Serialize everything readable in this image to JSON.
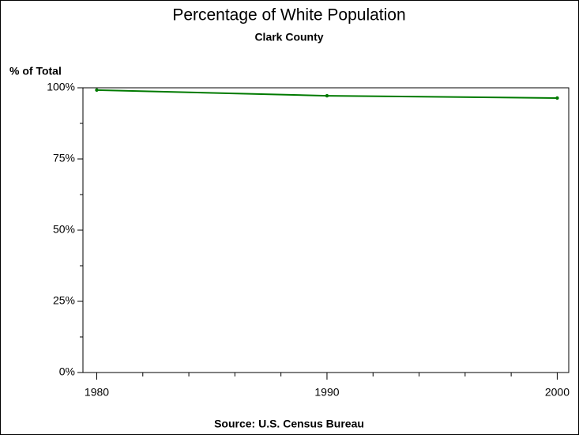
{
  "chart_data": {
    "type": "line",
    "title": "Percentage of White Population",
    "subtitle": "Clark County",
    "y_label": "% of Total",
    "source": "Source: U.S. Census Bureau",
    "x": [
      1980,
      1990,
      2000
    ],
    "series": [
      {
        "name": "Clark County",
        "color": "#007a00",
        "values": [
          99.2,
          97.2,
          96.4
        ]
      }
    ],
    "xlim": [
      1979.4,
      2000.5
    ],
    "xticks": [
      1980,
      1990,
      2000
    ],
    "xminor_ticks": [
      1982,
      1984,
      1986,
      1988,
      1992,
      1994,
      1996,
      1998
    ],
    "ylim": [
      0,
      100
    ],
    "yticks": [
      {
        "value": 0,
        "label": "0%"
      },
      {
        "value": 25,
        "label": "25%"
      },
      {
        "value": 50,
        "label": "50%"
      },
      {
        "value": 75,
        "label": "75%"
      },
      {
        "value": 100,
        "label": "100%"
      }
    ],
    "yminor_ticks": [
      12.5,
      37.5,
      62.5,
      87.5
    ],
    "grid": false
  }
}
